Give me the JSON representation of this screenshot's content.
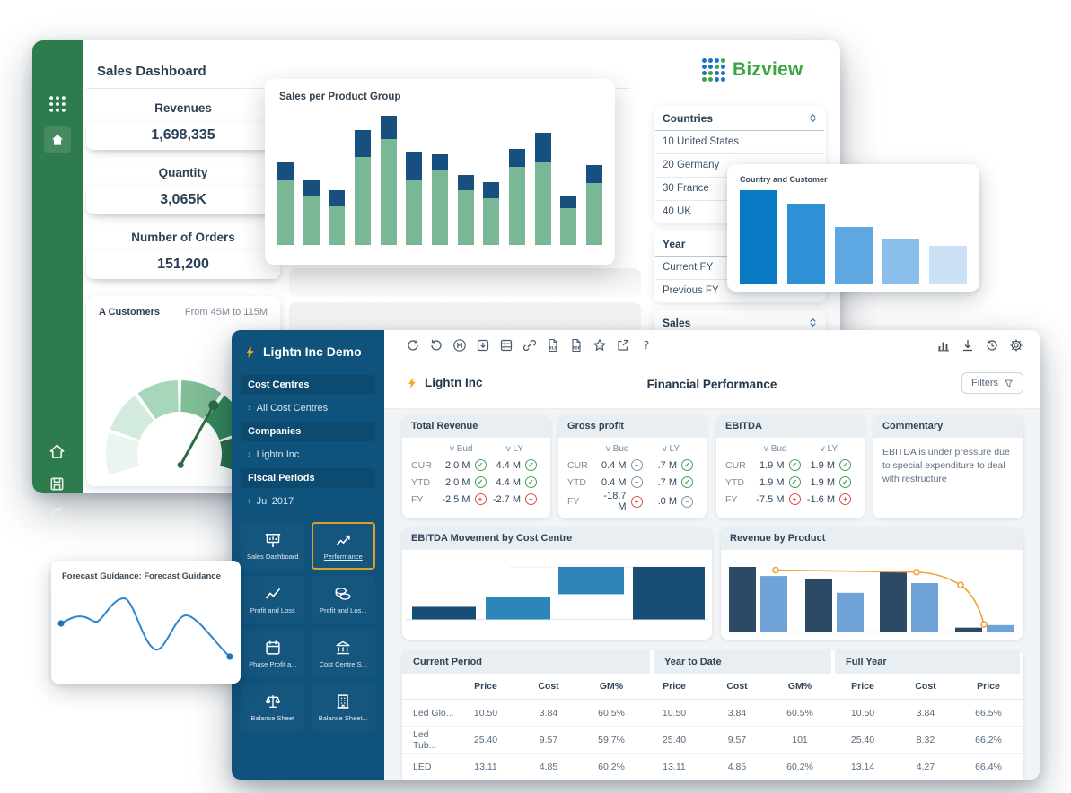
{
  "bizview": {
    "brand": "Bizview",
    "brand_color": "#3aa63f",
    "dot_blue": "#2171c7",
    "page_title": "Sales Dashboard",
    "kpis": [
      {
        "label": "Revenues",
        "value": "1,698,335"
      },
      {
        "label": "Quantity",
        "value": "3,065K"
      },
      {
        "label": "Number of Orders",
        "value": "151,200"
      }
    ],
    "gauge": {
      "label": "A Customers",
      "range": "From 45M to 115M"
    },
    "product_chart_title": "Sales per Product Group",
    "filters": {
      "groups": [
        {
          "label": "Countries",
          "sortable": true,
          "items": [
            "10 United States",
            "20 Germany",
            "30 France",
            "40 UK"
          ]
        },
        {
          "label": "Year",
          "sortable": false,
          "items": [
            "Current FY",
            "Previous FY"
          ]
        },
        {
          "label": "Sales",
          "sortable": true,
          "items": []
        }
      ]
    }
  },
  "country_card": {
    "title": "Country and Customer"
  },
  "forecast_card": {
    "title": "Forecast Guidance: Forecast Guidance"
  },
  "lightn": {
    "sidebar": {
      "app_title": "Lightn Inc Demo",
      "nav": [
        {
          "type": "header",
          "label": "Cost Centres"
        },
        {
          "type": "item",
          "label": "All Cost Centres"
        },
        {
          "type": "header",
          "label": "Companies"
        },
        {
          "type": "item",
          "label": "Lightn Inc"
        },
        {
          "type": "header",
          "label": "Fiscal Periods"
        },
        {
          "type": "item",
          "label": "Jul 2017"
        }
      ],
      "tiles": [
        {
          "label": "Sales Dashboard",
          "icon": "presentation-icon",
          "selected": false
        },
        {
          "label": "Performance",
          "icon": "trend-arrow-icon",
          "selected": true
        },
        {
          "label": "Profit and Loss",
          "icon": "line-chart-icon",
          "selected": false
        },
        {
          "label": "Profit and Los...",
          "icon": "coins-icon",
          "selected": false
        },
        {
          "label": "Phase Profit a...",
          "icon": "calendar-icon",
          "selected": false
        },
        {
          "label": "Cost Centre S...",
          "icon": "bank-icon",
          "selected": false
        },
        {
          "label": "Balance Sheet",
          "icon": "scales-icon",
          "selected": false
        },
        {
          "label": "Balance Sheet...",
          "icon": "building-icon",
          "selected": false
        }
      ]
    },
    "toolbar": {
      "left_icons": [
        "refresh-icon",
        "undo-icon",
        "h-circle-icon",
        "download-box-icon",
        "spreadsheet-icon",
        "link-icon",
        "xls-file-icon",
        "pdf-file-icon",
        "star-icon",
        "share-icon",
        "help-icon"
      ],
      "right_icons": [
        "chart-icon",
        "download-icon",
        "history-icon",
        "settings-icon"
      ]
    },
    "header": {
      "company": "Lightn Inc",
      "title": "Financial Performance",
      "filters_label": "Filters"
    },
    "kpi_cards": [
      {
        "title": "Total Revenue",
        "columns": [
          "v Bud",
          "v LY"
        ],
        "rows": [
          {
            "label": "CUR",
            "vbud": "2.0 M",
            "vbud_status": "good",
            "vly": "4.4 M",
            "vly_status": "good"
          },
          {
            "label": "YTD",
            "vbud": "2.0 M",
            "vbud_status": "good",
            "vly": "4.4 M",
            "vly_status": "good"
          },
          {
            "label": "FY",
            "vbud": "-2.5 M",
            "vbud_status": "bad",
            "vly": "-2.7 M",
            "vly_status": "bad"
          }
        ]
      },
      {
        "title": "Gross profit",
        "columns": [
          "v Bud",
          "v LY"
        ],
        "rows": [
          {
            "label": "CUR",
            "vbud": "0.4 M",
            "vbud_status": "neutral",
            "vly": ".7 M",
            "vly_status": "good"
          },
          {
            "label": "YTD",
            "vbud": "0.4 M",
            "vbud_status": "neutral",
            "vly": ".7 M",
            "vly_status": "good"
          },
          {
            "label": "FY",
            "vbud": "-18.7 M",
            "vbud_status": "bad",
            "vly": ".0 M",
            "vly_status": "neutral"
          }
        ]
      },
      {
        "title": "EBITDA",
        "columns": [
          "v Bud",
          "v LY"
        ],
        "rows": [
          {
            "label": "CUR",
            "vbud": "1.9 M",
            "vbud_status": "good",
            "vly": "1.9 M",
            "vly_status": "good"
          },
          {
            "label": "YTD",
            "vbud": "1.9 M",
            "vbud_status": "good",
            "vly": "1.9 M",
            "vly_status": "good"
          },
          {
            "label": "FY",
            "vbud": "-7.5 M",
            "vbud_status": "bad",
            "vly": "-1.6 M",
            "vly_status": "bad"
          }
        ]
      }
    ],
    "commentary": {
      "title": "Commentary",
      "text": "EBITDA is under pressure due to special expenditure to deal with restructure"
    },
    "charts": {
      "left_title": "EBITDA Movement by Cost Centre",
      "right_title": "Revenue by Product"
    },
    "table": {
      "groups": [
        {
          "label": "Current Period",
          "columns": [
            "Price",
            "Cost",
            "GM%"
          ]
        },
        {
          "label": "Year to Date",
          "columns": [
            "Price",
            "Cost",
            "GM%"
          ]
        },
        {
          "label": "Full Year",
          "columns": [
            "Price",
            "Cost",
            "Price"
          ]
        }
      ],
      "rows": [
        {
          "label": "Led Glo...",
          "values": [
            "10.50",
            "3.84",
            "60.5%",
            "10.50",
            "3.84",
            "60.5%",
            "10.50",
            "3.84",
            "66.5%"
          ]
        },
        {
          "label": "Led Tub...",
          "values": [
            "25.40",
            "9.57",
            "59.7%",
            "25.40",
            "9.57",
            "101",
            "25.40",
            "8.32",
            "66.2%"
          ]
        },
        {
          "label": "LED",
          "values": [
            "13.11",
            "4.85",
            "60.2%",
            "13.11",
            "4.85",
            "60.2%",
            "13.14",
            "4.27",
            "66.4%"
          ]
        }
      ]
    }
  },
  "chart_data": [
    {
      "id": "sales_per_product_group",
      "type": "bar",
      "stacked": true,
      "title": "Sales per Product Group",
      "series": [
        {
          "name": "base-green",
          "values": [
            47,
            35,
            28,
            64,
            77,
            47,
            54,
            40,
            34,
            57,
            60,
            27,
            45
          ]
        },
        {
          "name": "top-navy",
          "values": [
            13,
            12,
            12,
            20,
            17,
            21,
            12,
            11,
            12,
            13,
            22,
            8,
            13
          ]
        }
      ],
      "ylabel": "",
      "unit": "% of plot height (no axis labels shown)",
      "colors": {
        "base": "#79b795",
        "top": "#17507f"
      }
    },
    {
      "id": "country_and_customer",
      "type": "bar",
      "title": "Country and Customer",
      "values": [
        100,
        86,
        61,
        49,
        41
      ],
      "unit": "relative height %",
      "colors": [
        "#0a79c4",
        "#3191d6",
        "#5da8e2",
        "#8abfec",
        "#cae1f6"
      ]
    },
    {
      "id": "customers_gauge",
      "type": "gauge",
      "title": "A Customers",
      "range_label": "From 45M to 115M",
      "segments": 6,
      "segment_colors": [
        "#e9f5ee",
        "#d2ebdc",
        "#a8d6ba",
        "#7fbe97",
        "#35875a",
        "#2a7148"
      ],
      "needle_angle_deg": 305
    },
    {
      "id": "ebitda_movement",
      "type": "waterfall",
      "title": "EBITDA Movement by Cost Centre",
      "bars": [
        {
          "from": 0,
          "to": 24,
          "tone": "dark"
        },
        {
          "from": 0,
          "to": 43,
          "tone": "blue"
        },
        {
          "from": 48,
          "to": 100,
          "tone": "blue"
        },
        {
          "from": 0,
          "to": 100,
          "tone": "dark"
        }
      ],
      "unit": "% of plot height (no axis labels shown)",
      "colors": {
        "dark": "#174e75",
        "blue": "#2d85ba"
      }
    },
    {
      "id": "revenue_by_product",
      "type": "bar",
      "title": "Revenue by Product",
      "groups": 4,
      "series": [
        {
          "name": "dark",
          "values": [
            100,
            82,
            93,
            6
          ]
        },
        {
          "name": "light",
          "values": [
            86,
            60,
            75,
            10
          ]
        }
      ],
      "line": {
        "color": "#f0a33a",
        "points": [
          95,
          92,
          72,
          11
        ]
      },
      "unit": "relative height %",
      "colors": {
        "dark": "#2c4a66",
        "light": "#6fa3d8"
      }
    },
    {
      "id": "forecast_guidance",
      "type": "line",
      "title": "Forecast Guidance: Forecast Guidance",
      "points_rel_pct": [
        [
          0,
          44
        ],
        [
          14,
          52
        ],
        [
          21,
          46
        ],
        [
          37,
          76
        ],
        [
          56,
          9
        ],
        [
          74,
          54
        ],
        [
          100,
          0
        ]
      ],
      "unit": "relative curve, no axes shown",
      "color": "#2e86cf"
    }
  ]
}
